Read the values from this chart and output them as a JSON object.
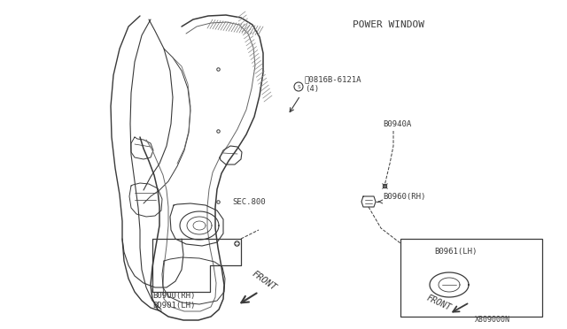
{
  "bg_color": "#ffffff",
  "lc": "#3a3a3a",
  "title": "POWER WINDOW",
  "label_08168": "0816B-6121A\n(4)",
  "label_80940": "B0940A",
  "label_80960": "B0960(RH)",
  "label_80961": "B0961(LH)",
  "label_b0900": "B0900(RH)\nBD901(LH)",
  "label_sec800": "SEC.800",
  "label_xb809": "X809000N",
  "front_text": "FRONT",
  "front_text2": "FRONT"
}
